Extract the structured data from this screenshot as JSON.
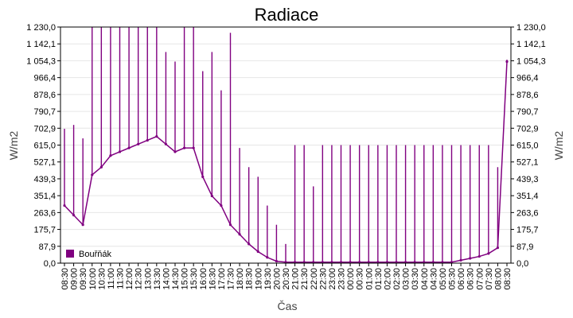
{
  "chart_data": {
    "type": "line",
    "title": "Radiace",
    "xlabel": "Čas",
    "ylabel_left": "W/m2",
    "ylabel_right": "W/m2",
    "ylim": [
      0,
      1230
    ],
    "y_ticks": [
      "0,0",
      "87,9",
      "175,7",
      "263,6",
      "351,4",
      "439,3",
      "527,1",
      "615,0",
      "702,9",
      "790,7",
      "878,6",
      "966,4",
      "1 054,3",
      "1 142,1",
      "1 230,0"
    ],
    "x_ticks": [
      "08:30",
      "09:00",
      "09:30",
      "10:00",
      "10:30",
      "11:00",
      "11:30",
      "12:00",
      "12:30",
      "13:00",
      "13:30",
      "14:00",
      "14:30",
      "15:00",
      "15:30",
      "16:00",
      "16:30",
      "17:00",
      "17:30",
      "18:00",
      "18:30",
      "19:00",
      "19:30",
      "20:00",
      "20:30",
      "21:00",
      "21:30",
      "22:00",
      "22:30",
      "23:00",
      "23:30",
      "00:00",
      "00:30",
      "01:00",
      "01:30",
      "02:00",
      "02:30",
      "03:00",
      "03:30",
      "04:00",
      "04:30",
      "05:00",
      "05:30",
      "06:00",
      "06:30",
      "07:00",
      "07:30",
      "08:00",
      "08:30"
    ],
    "grid": true,
    "legend_position": "bottom-left",
    "series": [
      {
        "name": "Bouřňák",
        "color": "#800080",
        "x": [
          "08:30",
          "09:00",
          "09:30",
          "10:00",
          "10:30",
          "11:00",
          "11:30",
          "12:00",
          "12:30",
          "13:00",
          "13:30",
          "14:00",
          "14:30",
          "15:00",
          "15:30",
          "16:00",
          "16:30",
          "17:00",
          "17:30",
          "18:00",
          "18:30",
          "19:00",
          "19:30",
          "20:00",
          "20:30",
          "21:00",
          "21:30",
          "22:00",
          "22:30",
          "23:00",
          "23:30",
          "00:00",
          "00:30",
          "01:00",
          "01:30",
          "02:00",
          "02:30",
          "03:00",
          "03:30",
          "04:00",
          "04:30",
          "05:00",
          "05:30",
          "06:00",
          "06:30",
          "07:00",
          "07:30",
          "08:00",
          "08:30"
        ],
        "values": [
          300,
          250,
          200,
          460,
          500,
          560,
          580,
          600,
          620,
          640,
          660,
          620,
          580,
          600,
          600,
          450,
          350,
          300,
          200,
          150,
          100,
          60,
          30,
          10,
          5,
          5,
          5,
          5,
          5,
          5,
          5,
          5,
          5,
          5,
          5,
          5,
          5,
          5,
          5,
          5,
          5,
          5,
          5,
          15,
          25,
          35,
          50,
          80,
          1050
        ],
        "peaks": [
          700,
          720,
          650,
          1230,
          1230,
          1230,
          1230,
          1230,
          1230,
          1230,
          1230,
          1100,
          1050,
          1230,
          1230,
          1000,
          1100,
          900,
          1200,
          600,
          500,
          450,
          300,
          200,
          100,
          615,
          615,
          400,
          615,
          615,
          615,
          615,
          615,
          615,
          615,
          615,
          615,
          615,
          615,
          615,
          615,
          615,
          615,
          615,
          615,
          615,
          615,
          500,
          1060
        ]
      }
    ]
  }
}
